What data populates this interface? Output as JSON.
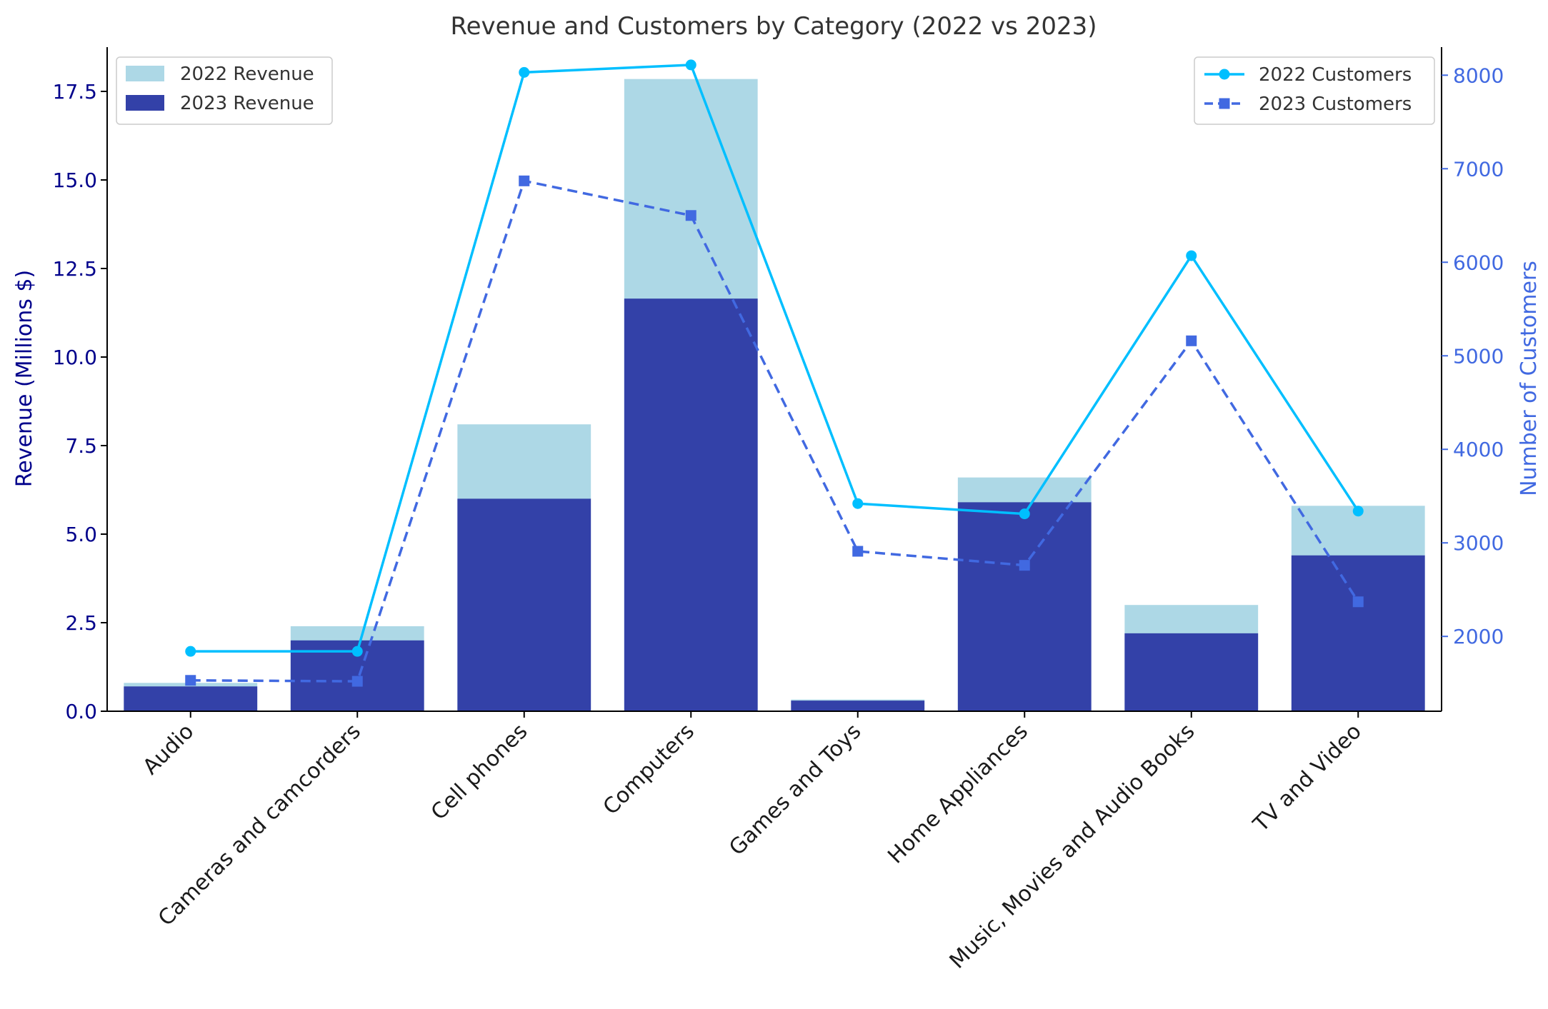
{
  "chart_data": {
    "type": "bar",
    "title": "Revenue and Customers by Category (2022 vs 2023)",
    "categories": [
      "Audio",
      "Cameras and camcorders",
      "Cell phones",
      "Computers",
      "Games and Toys",
      "Home Appliances",
      "Music, Movies and Audio Books",
      "TV and Video"
    ],
    "ylabel": "Revenue (Millions $)",
    "y2label": "Number of Customers",
    "ylim": [
      0,
      18.75
    ],
    "y2lim": [
      1200,
      8300
    ],
    "yticks": [
      "0.0",
      "2.5",
      "5.0",
      "7.5",
      "10.0",
      "12.5",
      "15.0",
      "17.5"
    ],
    "y2ticks": [
      "2000",
      "3000",
      "4000",
      "5000",
      "6000",
      "7000",
      "8000"
    ],
    "bar_series": [
      {
        "name": "2022 Revenue",
        "color": "#add8e6",
        "values": [
          0.8,
          2.4,
          8.1,
          17.85,
          0.33,
          6.6,
          3.0,
          5.8
        ]
      },
      {
        "name": "2023 Revenue",
        "color": "#3341a8",
        "values": [
          0.7,
          2.0,
          6.0,
          11.65,
          0.3,
          5.9,
          2.2,
          4.4
        ]
      }
    ],
    "line_series": [
      {
        "name": "2022 Customers",
        "color": "#00bfff",
        "style": "solid",
        "marker": "circle",
        "values": [
          1840,
          1840,
          8030,
          8110,
          3420,
          3310,
          6070,
          3340
        ]
      },
      {
        "name": "2023 Customers",
        "color": "#4169e1",
        "style": "dashed",
        "marker": "square",
        "values": [
          1530,
          1520,
          6870,
          6500,
          2910,
          2760,
          5160,
          2370
        ]
      }
    ],
    "legend_left_placement": "top-left",
    "legend_right_placement": "top-right",
    "grid": false
  }
}
